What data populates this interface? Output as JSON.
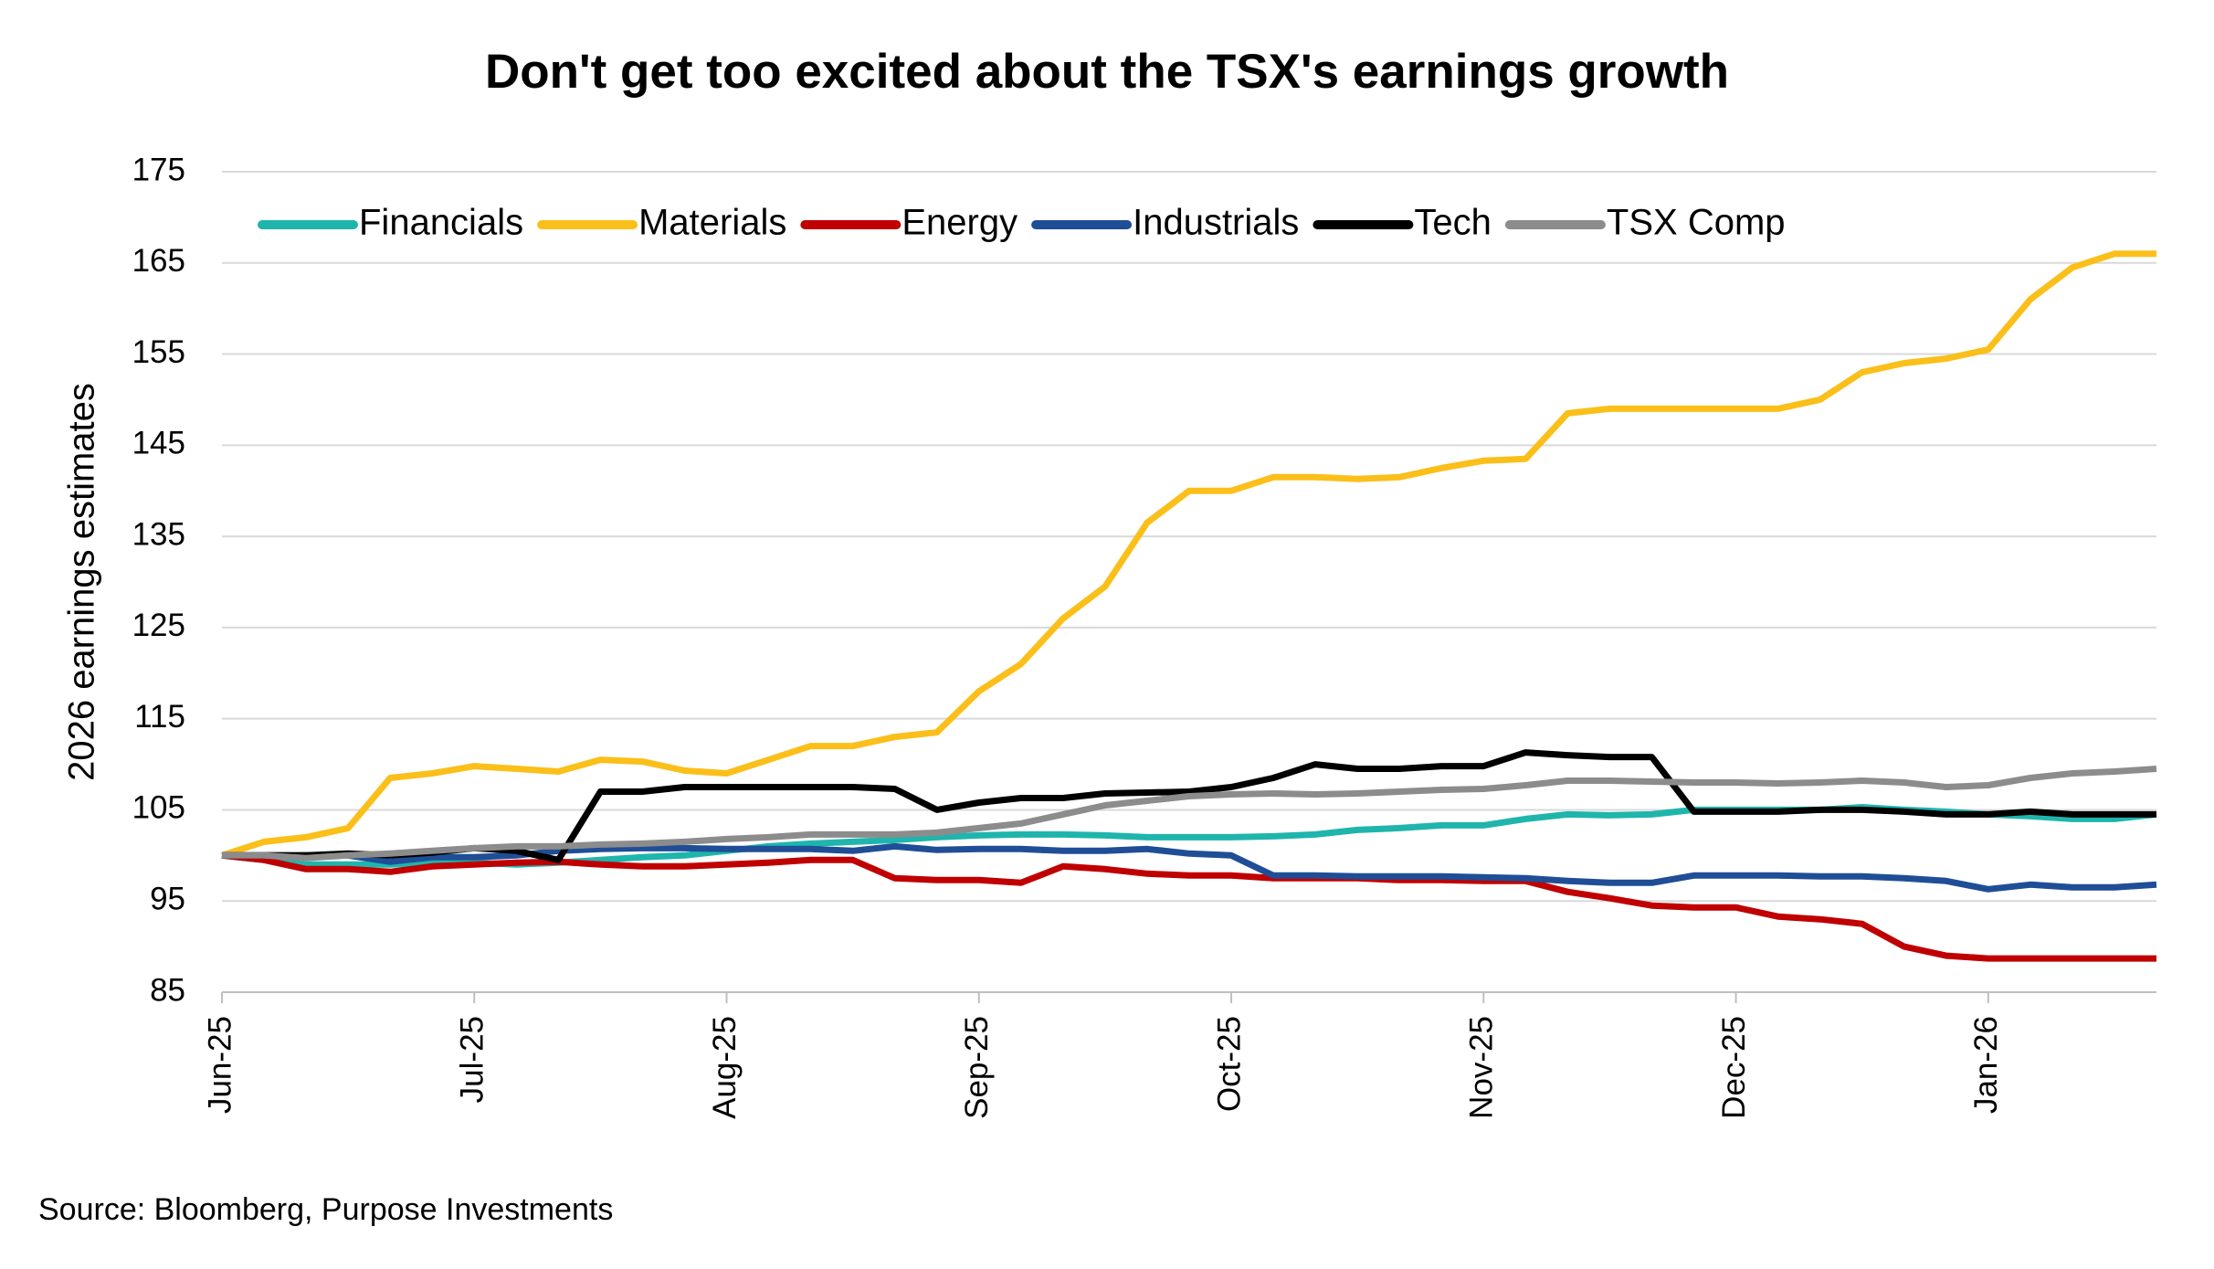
{
  "chart_data": {
    "type": "line",
    "title": "Don't get too excited about the TSX's earnings growth",
    "y_label": "2026 earnings estimates",
    "source": "Source: Bloomberg, Purpose Investments",
    "categories": [
      "Jun-25",
      null,
      null,
      null,
      null,
      null,
      "Jul-25",
      null,
      null,
      null,
      null,
      null,
      "Aug-25",
      null,
      null,
      null,
      null,
      null,
      "Sep-25",
      null,
      null,
      null,
      null,
      null,
      "Oct-25",
      null,
      null,
      null,
      null,
      null,
      "Nov-25",
      null,
      null,
      null,
      null,
      null,
      "Dec-25",
      null,
      null,
      null,
      null,
      null,
      "Jan-26",
      null,
      null,
      null,
      null
    ],
    "ylim": [
      85,
      175
    ],
    "yticks": [
      85,
      95,
      105,
      115,
      125,
      135,
      145,
      155,
      165,
      175
    ],
    "grid": true,
    "legend": "top",
    "series": [
      {
        "name": "Financials",
        "color": "#1fb5ad",
        "values": [
          100,
          99.5,
          99,
          99,
          99,
          99.2,
          99.2,
          99,
          99.2,
          99.5,
          99.8,
          100,
          100.5,
          101,
          101.3,
          101.5,
          101.7,
          102,
          102.2,
          102.3,
          102.3,
          102.2,
          102,
          102,
          102,
          102.1,
          102.3,
          102.8,
          103,
          103.3,
          103.3,
          104,
          104.5,
          104.4,
          104.5,
          105,
          105,
          105,
          105,
          105.3,
          105,
          104.8,
          104.5,
          104.3,
          104,
          104,
          104.5
        ]
      },
      {
        "name": "Materials",
        "color": "#fbbf1a",
        "values": [
          100,
          101.5,
          102,
          103,
          108.5,
          109,
          109.8,
          109.5,
          109.2,
          110.5,
          110.3,
          109.3,
          109,
          110.5,
          112,
          112,
          113,
          113.5,
          118,
          121,
          126,
          129.5,
          136.5,
          140,
          140,
          141.5,
          141.5,
          141.3,
          141.5,
          142.5,
          143.3,
          143.5,
          148.5,
          149,
          149,
          149,
          149,
          149,
          150,
          153,
          154,
          154.5,
          155.5,
          161,
          164.5,
          166,
          166
        ]
      },
      {
        "name": "Energy",
        "color": "#c00000",
        "values": [
          100,
          99.5,
          98.5,
          98.5,
          98.2,
          98.8,
          99,
          99.2,
          99.3,
          99,
          98.8,
          98.8,
          99,
          99.2,
          99.5,
          99.5,
          97.5,
          97.3,
          97.3,
          97,
          98.8,
          98.5,
          98,
          97.8,
          97.8,
          97.5,
          97.5,
          97.5,
          97.3,
          97.3,
          97.2,
          97.2,
          96,
          95.3,
          94.5,
          94.3,
          94.3,
          93.3,
          93,
          92.5,
          90,
          89,
          88.7,
          88.7,
          88.7,
          88.7,
          88.7
        ]
      },
      {
        "name": "Industrials",
        "color": "#1f4e96",
        "values": [
          100,
          100,
          100,
          100,
          99.3,
          99.8,
          99.8,
          100,
          100.5,
          100.7,
          100.8,
          100.8,
          100.7,
          100.7,
          100.7,
          100.5,
          101,
          100.6,
          100.7,
          100.7,
          100.5,
          100.5,
          100.7,
          100.2,
          100,
          97.8,
          97.8,
          97.7,
          97.7,
          97.7,
          97.6,
          97.5,
          97.2,
          97,
          97,
          97.8,
          97.8,
          97.8,
          97.7,
          97.7,
          97.5,
          97.2,
          96.3,
          96.8,
          96.5,
          96.5,
          96.8
        ]
      },
      {
        "name": "Tech",
        "color": "#000000",
        "values": [
          100,
          100,
          100,
          100.2,
          100,
          100.3,
          100.8,
          100.5,
          99.5,
          107,
          107,
          107.5,
          107.5,
          107.5,
          107.5,
          107.5,
          107.3,
          105,
          105.8,
          106.3,
          106.3,
          106.8,
          106.9,
          107,
          107.5,
          108.5,
          110,
          109.5,
          109.5,
          109.8,
          109.8,
          111.3,
          111,
          110.8,
          110.8,
          104.8,
          104.8,
          104.8,
          105,
          105,
          104.8,
          104.5,
          104.5,
          104.8,
          104.5,
          104.5,
          104.5
        ]
      },
      {
        "name": "TSX Comp",
        "color": "#8c8c8c",
        "values": [
          100,
          100,
          99.7,
          100,
          100.2,
          100.5,
          100.8,
          101,
          101,
          101.2,
          101.3,
          101.5,
          101.8,
          102,
          102.3,
          102.3,
          102.3,
          102.5,
          103,
          103.5,
          104.5,
          105.5,
          106,
          106.5,
          106.7,
          106.8,
          106.7,
          106.8,
          107,
          107.2,
          107.3,
          107.7,
          108.2,
          108.2,
          108.1,
          108,
          108,
          107.9,
          108,
          108.2,
          108,
          107.5,
          107.7,
          108.5,
          109,
          109.2,
          109.5
        ]
      }
    ]
  }
}
